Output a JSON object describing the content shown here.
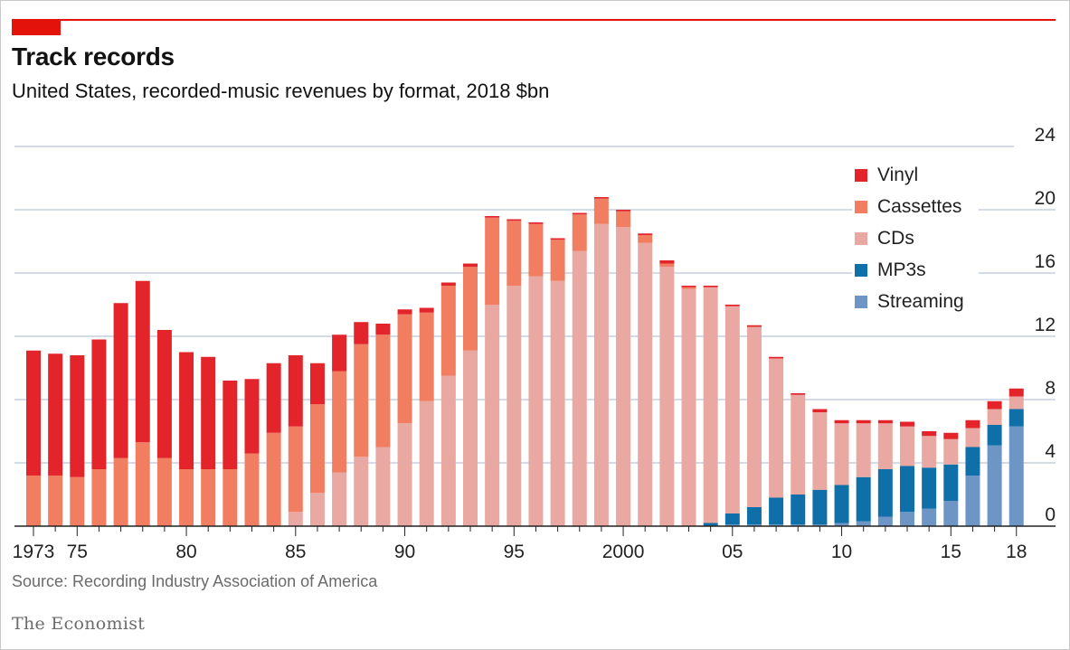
{
  "title": "Track records",
  "subtitle": "United States, recorded-music revenues by format, 2018 $bn",
  "source": "Source: Recording Industry Association of America",
  "brand": "The Economist",
  "colors": {
    "Vinyl": "#e3242b",
    "Cassettes": "#f27e62",
    "CDs": "#eaa8a3",
    "MP3s": "#0f6fa8",
    "Streaming": "#6d96c6",
    "grid": "#b9c8d6",
    "accent": "#e3120b"
  },
  "chart_data": {
    "type": "bar",
    "stacked": true,
    "y_axis_position": "right",
    "ylim": [
      0,
      24
    ],
    "y_ticks": [
      0,
      4,
      8,
      12,
      16,
      20,
      24
    ],
    "x_tick_labels": [
      {
        "year": 1973,
        "label": "1973"
      },
      {
        "year": 1975,
        "label": "75"
      },
      {
        "year": 1980,
        "label": "80"
      },
      {
        "year": 1985,
        "label": "85"
      },
      {
        "year": 1990,
        "label": "90"
      },
      {
        "year": 1995,
        "label": "95"
      },
      {
        "year": 2000,
        "label": "2000"
      },
      {
        "year": 2005,
        "label": "05"
      },
      {
        "year": 2010,
        "label": "10"
      },
      {
        "year": 2015,
        "label": "15"
      },
      {
        "year": 2018,
        "label": "18"
      }
    ],
    "legend_placement": "top-right",
    "x": [
      1973,
      1974,
      1975,
      1976,
      1977,
      1978,
      1979,
      1980,
      1981,
      1982,
      1983,
      1984,
      1985,
      1986,
      1987,
      1988,
      1989,
      1990,
      1991,
      1992,
      1993,
      1994,
      1995,
      1996,
      1997,
      1998,
      1999,
      2000,
      2001,
      2002,
      2003,
      2004,
      2005,
      2006,
      2007,
      2008,
      2009,
      2010,
      2011,
      2012,
      2013,
      2014,
      2015,
      2016,
      2017,
      2018
    ],
    "series": [
      {
        "name": "Streaming",
        "values": [
          0,
          0,
          0,
          0,
          0,
          0,
          0,
          0,
          0,
          0,
          0,
          0,
          0,
          0,
          0,
          0,
          0,
          0,
          0,
          0,
          0,
          0,
          0,
          0,
          0,
          0,
          0,
          0,
          0,
          0,
          0,
          0,
          0.1,
          0.1,
          0.1,
          0.1,
          0.1,
          0.2,
          0.3,
          0.6,
          0.9,
          1.1,
          1.6,
          3.2,
          5.1,
          6.3
        ]
      },
      {
        "name": "MP3s",
        "values": [
          0,
          0,
          0,
          0,
          0,
          0,
          0,
          0,
          0,
          0,
          0,
          0,
          0,
          0,
          0,
          0,
          0,
          0,
          0,
          0,
          0,
          0,
          0,
          0,
          0,
          0,
          0,
          0,
          0,
          0,
          0,
          0.2,
          0.7,
          1.1,
          1.7,
          1.9,
          2.2,
          2.4,
          2.8,
          3.0,
          2.9,
          2.6,
          2.3,
          1.8,
          1.3,
          1.1
        ]
      },
      {
        "name": "CDs",
        "values": [
          0,
          0,
          0,
          0,
          0,
          0,
          0,
          0,
          0,
          0,
          0,
          0,
          0.9,
          2.1,
          3.4,
          4.4,
          5.0,
          6.5,
          7.9,
          9.5,
          11.1,
          14.0,
          15.2,
          15.8,
          15.5,
          17.4,
          19.1,
          18.9,
          17.9,
          16.4,
          15.0,
          14.9,
          13.1,
          11.4,
          8.8,
          6.3,
          4.9,
          3.9,
          3.4,
          2.9,
          2.5,
          2.0,
          1.6,
          1.2,
          1.0,
          0.8
        ]
      },
      {
        "name": "Cassettes",
        "values": [
          3.2,
          3.2,
          3.1,
          3.6,
          4.3,
          5.3,
          4.3,
          3.6,
          3.6,
          3.6,
          4.6,
          5.9,
          5.4,
          5.6,
          6.4,
          7.1,
          7.1,
          6.9,
          5.6,
          5.7,
          5.3,
          5.5,
          4.1,
          3.3,
          2.6,
          2.3,
          1.6,
          1.0,
          0.5,
          0.2,
          0.1,
          0,
          0,
          0,
          0,
          0,
          0,
          0,
          0,
          0,
          0,
          0,
          0,
          0,
          0,
          0
        ]
      },
      {
        "name": "Vinyl",
        "values": [
          7.9,
          7.7,
          7.7,
          8.2,
          9.8,
          10.2,
          8.1,
          7.4,
          7.1,
          5.6,
          4.7,
          4.4,
          4.5,
          2.6,
          2.3,
          1.4,
          0.7,
          0.3,
          0.3,
          0.2,
          0.2,
          0.1,
          0.1,
          0.1,
          0.1,
          0.1,
          0.1,
          0.1,
          0.1,
          0.2,
          0.1,
          0.1,
          0.1,
          0.1,
          0.1,
          0.1,
          0.2,
          0.2,
          0.2,
          0.2,
          0.3,
          0.3,
          0.4,
          0.5,
          0.5,
          0.5
        ]
      }
    ]
  }
}
